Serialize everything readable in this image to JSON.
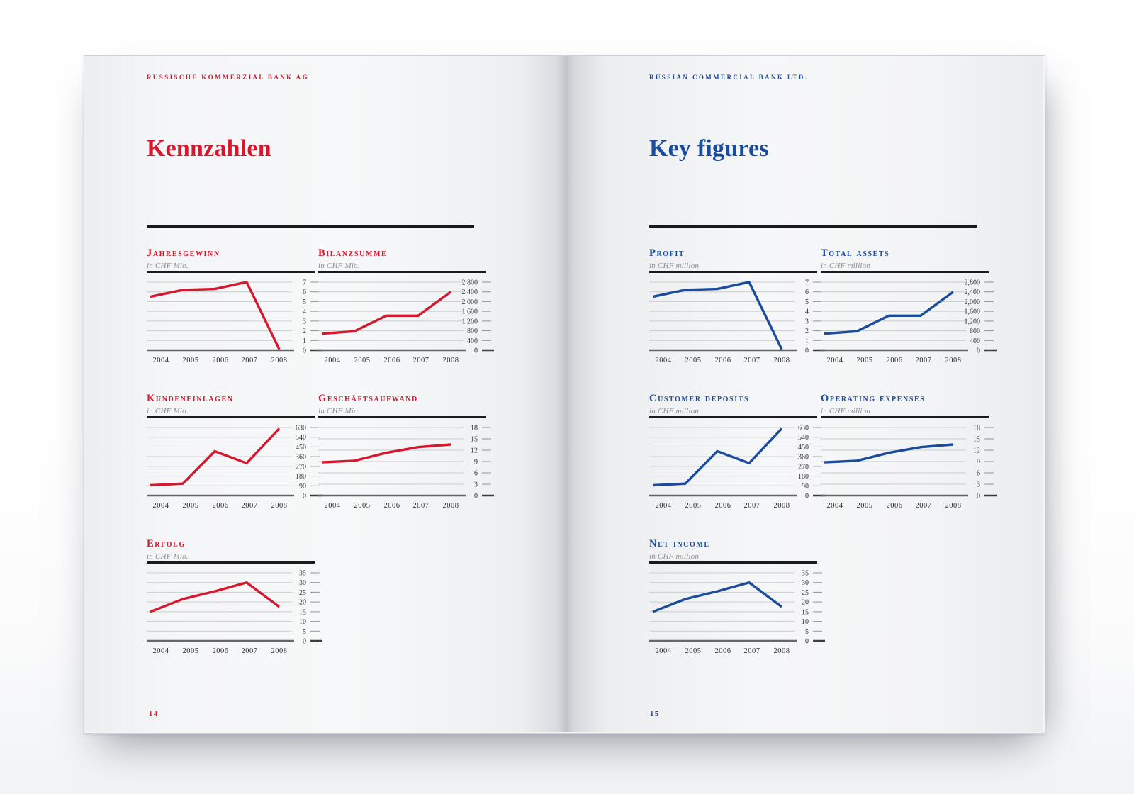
{
  "book": {
    "left_page": {
      "header": "RUSSISCHE KOMMERZIAL BANK AG",
      "title": "Kennzahlen",
      "page_number": "14",
      "accent_color": "#d6182e"
    },
    "right_page": {
      "header": "RUSSIAN COMMERCIAL BANK LTD.",
      "title": "Key figures",
      "page_number": "15",
      "accent_color": "#1b4c9c"
    }
  },
  "chart_data": [
    {
      "id": "jahresgewinn",
      "page": "left",
      "type": "line",
      "title": "Jahresgewinn",
      "subtitle": "in CHF Mio.",
      "x": [
        "2004",
        "2005",
        "2006",
        "2007",
        "2008"
      ],
      "values": [
        5.5,
        6.2,
        6.3,
        7.0,
        0.1
      ],
      "ymax": 7,
      "ylim": [
        0,
        7
      ],
      "ytick_labels": [
        "7",
        "6",
        "5",
        "4",
        "3",
        "2",
        "1",
        "0"
      ],
      "color": "#d6182e",
      "grid": true,
      "legend": "none"
    },
    {
      "id": "bilanzsumme",
      "page": "left",
      "type": "line",
      "title": "Bilanzsumme",
      "subtitle": "in CHF Mio.",
      "x": [
        "2004",
        "2005",
        "2006",
        "2007",
        "2008"
      ],
      "values": [
        680,
        780,
        1420,
        1420,
        2400
      ],
      "ymax": 2800,
      "ylim": [
        0,
        2800
      ],
      "ytick_labels": [
        "2 800",
        "2 400",
        "2 000",
        "1 600",
        "1 200",
        "800",
        "400",
        "0"
      ],
      "color": "#d6182e",
      "grid": true,
      "legend": "none"
    },
    {
      "id": "kundeneinlagen",
      "page": "left",
      "type": "line",
      "title": "Kundeneinlagen",
      "subtitle": "in CHF Mio.",
      "x": [
        "2004",
        "2005",
        "2006",
        "2007",
        "2008"
      ],
      "values": [
        95,
        110,
        410,
        300,
        620
      ],
      "ymax": 630,
      "ylim": [
        0,
        630
      ],
      "ytick_labels": [
        "630",
        "540",
        "450",
        "360",
        "270",
        "180",
        "90",
        "0"
      ],
      "color": "#d6182e",
      "grid": true,
      "legend": "none"
    },
    {
      "id": "geschaeftsaufwand",
      "page": "left",
      "type": "line",
      "title": "Geschäftsaufwand",
      "subtitle": "in CHF Mio.",
      "x": [
        "2004",
        "2005",
        "2006",
        "2007",
        "2008"
      ],
      "values": [
        8.8,
        9.2,
        11.3,
        12.8,
        13.5
      ],
      "ymax": 18,
      "ylim": [
        0,
        18
      ],
      "ytick_labels": [
        "18",
        "15",
        "12",
        "9",
        "6",
        "3",
        "0"
      ],
      "color": "#d6182e",
      "grid": true,
      "legend": "none"
    },
    {
      "id": "erfolg",
      "page": "left",
      "type": "line",
      "title": "Erfolg",
      "subtitle": "in CHF Mio.",
      "x": [
        "2004",
        "2005",
        "2006",
        "2007",
        "2008"
      ],
      "values": [
        15,
        21.5,
        25.5,
        30,
        17.5
      ],
      "ymax": 35,
      "ylim": [
        0,
        35
      ],
      "ytick_labels": [
        "35",
        "30",
        "25",
        "20",
        "15",
        "10",
        "5",
        "0"
      ],
      "color": "#d6182e",
      "grid": true,
      "legend": "none"
    },
    {
      "id": "profit",
      "page": "right",
      "type": "line",
      "title": "Profit",
      "subtitle": "in CHF million",
      "x": [
        "2004",
        "2005",
        "2006",
        "2007",
        "2008"
      ],
      "values": [
        5.5,
        6.2,
        6.3,
        7.0,
        0.1
      ],
      "ymax": 7,
      "ylim": [
        0,
        7
      ],
      "ytick_labels": [
        "7",
        "6",
        "5",
        "4",
        "3",
        "2",
        "1",
        "0"
      ],
      "color": "#1b4c9c",
      "grid": true,
      "legend": "none"
    },
    {
      "id": "total-assets",
      "page": "right",
      "type": "line",
      "title": "Total assets",
      "subtitle": "in CHF million",
      "x": [
        "2004",
        "2005",
        "2006",
        "2007",
        "2008"
      ],
      "values": [
        680,
        780,
        1420,
        1420,
        2400
      ],
      "ymax": 2800,
      "ylim": [
        0,
        2800
      ],
      "ytick_labels": [
        "2,800",
        "2,400",
        "2,000",
        "1,600",
        "1,200",
        "800",
        "400",
        "0"
      ],
      "color": "#1b4c9c",
      "grid": true,
      "legend": "none"
    },
    {
      "id": "customer-deposits",
      "page": "right",
      "type": "line",
      "title": "Customer deposits",
      "subtitle": "in CHF million",
      "x": [
        "2004",
        "2005",
        "2006",
        "2007",
        "2008"
      ],
      "values": [
        95,
        110,
        410,
        300,
        620
      ],
      "ymax": 630,
      "ylim": [
        0,
        630
      ],
      "ytick_labels": [
        "630",
        "540",
        "450",
        "360",
        "270",
        "180",
        "90",
        "0"
      ],
      "color": "#1b4c9c",
      "grid": true,
      "legend": "none"
    },
    {
      "id": "operating-expenses",
      "page": "right",
      "type": "line",
      "title": "Operating expenses",
      "subtitle": "in CHF million",
      "x": [
        "2004",
        "2005",
        "2006",
        "2007",
        "2008"
      ],
      "values": [
        8.8,
        9.2,
        11.3,
        12.8,
        13.5
      ],
      "ymax": 18,
      "ylim": [
        0,
        18
      ],
      "ytick_labels": [
        "18",
        "15",
        "12",
        "9",
        "6",
        "3",
        "0"
      ],
      "color": "#1b4c9c",
      "grid": true,
      "legend": "none"
    },
    {
      "id": "net-income",
      "page": "right",
      "type": "line",
      "title": "Net income",
      "subtitle": "in CHF million",
      "x": [
        "2004",
        "2005",
        "2006",
        "2007",
        "2008"
      ],
      "values": [
        15,
        21.5,
        25.5,
        30,
        17.5
      ],
      "ymax": 35,
      "ylim": [
        0,
        35
      ],
      "ytick_labels": [
        "35",
        "30",
        "25",
        "20",
        "15",
        "10",
        "5",
        "0"
      ],
      "color": "#1b4c9c",
      "grid": true,
      "legend": "none"
    }
  ]
}
